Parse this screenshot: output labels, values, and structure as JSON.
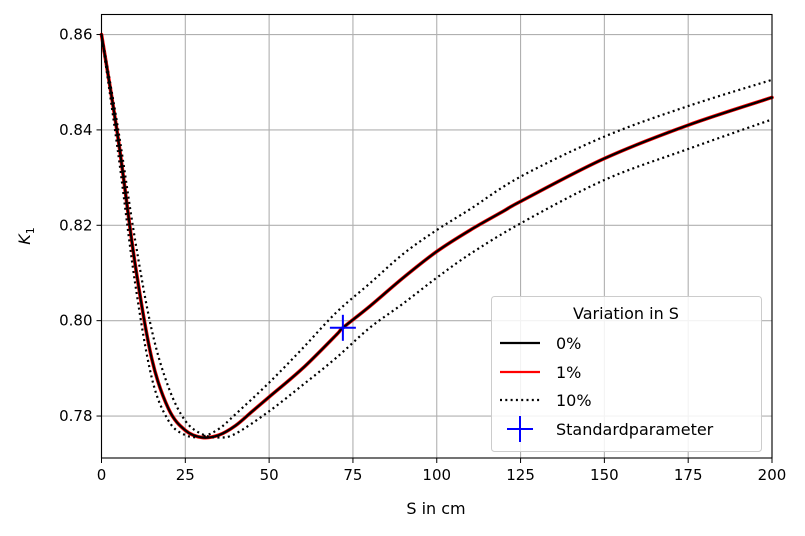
{
  "chart_data": {
    "type": "line",
    "title": "",
    "xlabel": "S in cm",
    "ylabel": "K",
    "ylabel_subscript": "1",
    "xlim": [
      0,
      200
    ],
    "ylim": [
      0.7712,
      0.8642
    ],
    "xticks": [
      "0",
      "25",
      "50",
      "75",
      "100",
      "125",
      "150",
      "175",
      "200"
    ],
    "xtick_values": [
      0,
      25,
      50,
      75,
      100,
      125,
      150,
      175,
      200
    ],
    "yticks": [
      "0.78",
      "0.80",
      "0.82",
      "0.84",
      "0.86"
    ],
    "ytick_values": [
      0.78,
      0.8,
      0.82,
      0.84,
      0.86
    ],
    "grid": true,
    "legend": {
      "title": "Variation in S",
      "placement": "lower-right",
      "entries": [
        "0%",
        "1%",
        "10%",
        "Standardparameter"
      ]
    },
    "series": [
      {
        "name": "1%",
        "color": "#ff0000",
        "style": "solid",
        "x": [
          0,
          5,
          10,
          15,
          20,
          25,
          30,
          35,
          40,
          45,
          50,
          60,
          70,
          72,
          80,
          90,
          100,
          110,
          120,
          125,
          150,
          175,
          200
        ],
        "y": [
          0.86,
          0.838,
          0.812,
          0.792,
          0.7815,
          0.777,
          0.7755,
          0.776,
          0.778,
          0.781,
          0.784,
          0.79,
          0.797,
          0.7985,
          0.803,
          0.809,
          0.8145,
          0.819,
          0.823,
          0.825,
          0.834,
          0.841,
          0.8468
        ]
      },
      {
        "name": "0%",
        "color": "#000000",
        "style": "solid",
        "x": [
          0,
          5,
          10,
          15,
          20,
          25,
          30,
          35,
          40,
          45,
          50,
          60,
          70,
          72,
          80,
          90,
          100,
          110,
          120,
          125,
          150,
          175,
          200
        ],
        "y": [
          0.86,
          0.838,
          0.812,
          0.792,
          0.7815,
          0.777,
          0.7755,
          0.776,
          0.778,
          0.781,
          0.784,
          0.79,
          0.797,
          0.7985,
          0.803,
          0.809,
          0.8145,
          0.819,
          0.823,
          0.825,
          0.834,
          0.841,
          0.8468
        ]
      },
      {
        "name": "10%",
        "color": "#000000",
        "style": "dotted",
        "x": [
          0,
          5,
          10,
          15,
          20,
          25,
          30,
          35,
          40,
          50,
          60,
          70,
          80,
          90,
          100,
          110,
          125,
          150,
          175,
          200
        ],
        "y": [
          0.86,
          0.835,
          0.808,
          0.788,
          0.779,
          0.776,
          0.7757,
          0.7773,
          0.7804,
          0.787,
          0.7942,
          0.8017,
          0.8078,
          0.814,
          0.819,
          0.8234,
          0.8302,
          0.8386,
          0.845,
          0.8505
        ]
      },
      {
        "name": "10%",
        "color": "#000000",
        "style": "dotted",
        "x": [
          0,
          5,
          10,
          15,
          20,
          25,
          30,
          35,
          40,
          50,
          60,
          70,
          80,
          90,
          100,
          110,
          125,
          150,
          175,
          200
        ],
        "y": [
          0.86,
          0.84,
          0.817,
          0.798,
          0.786,
          0.779,
          0.7762,
          0.7755,
          0.7763,
          0.781,
          0.7865,
          0.7922,
          0.7985,
          0.8036,
          0.809,
          0.814,
          0.8204,
          0.8295,
          0.836,
          0.8422
        ]
      }
    ],
    "marker": {
      "name": "Standardparameter",
      "x": 72,
      "y": 0.7985,
      "symbol": "plus",
      "color": "#0000ff"
    }
  }
}
